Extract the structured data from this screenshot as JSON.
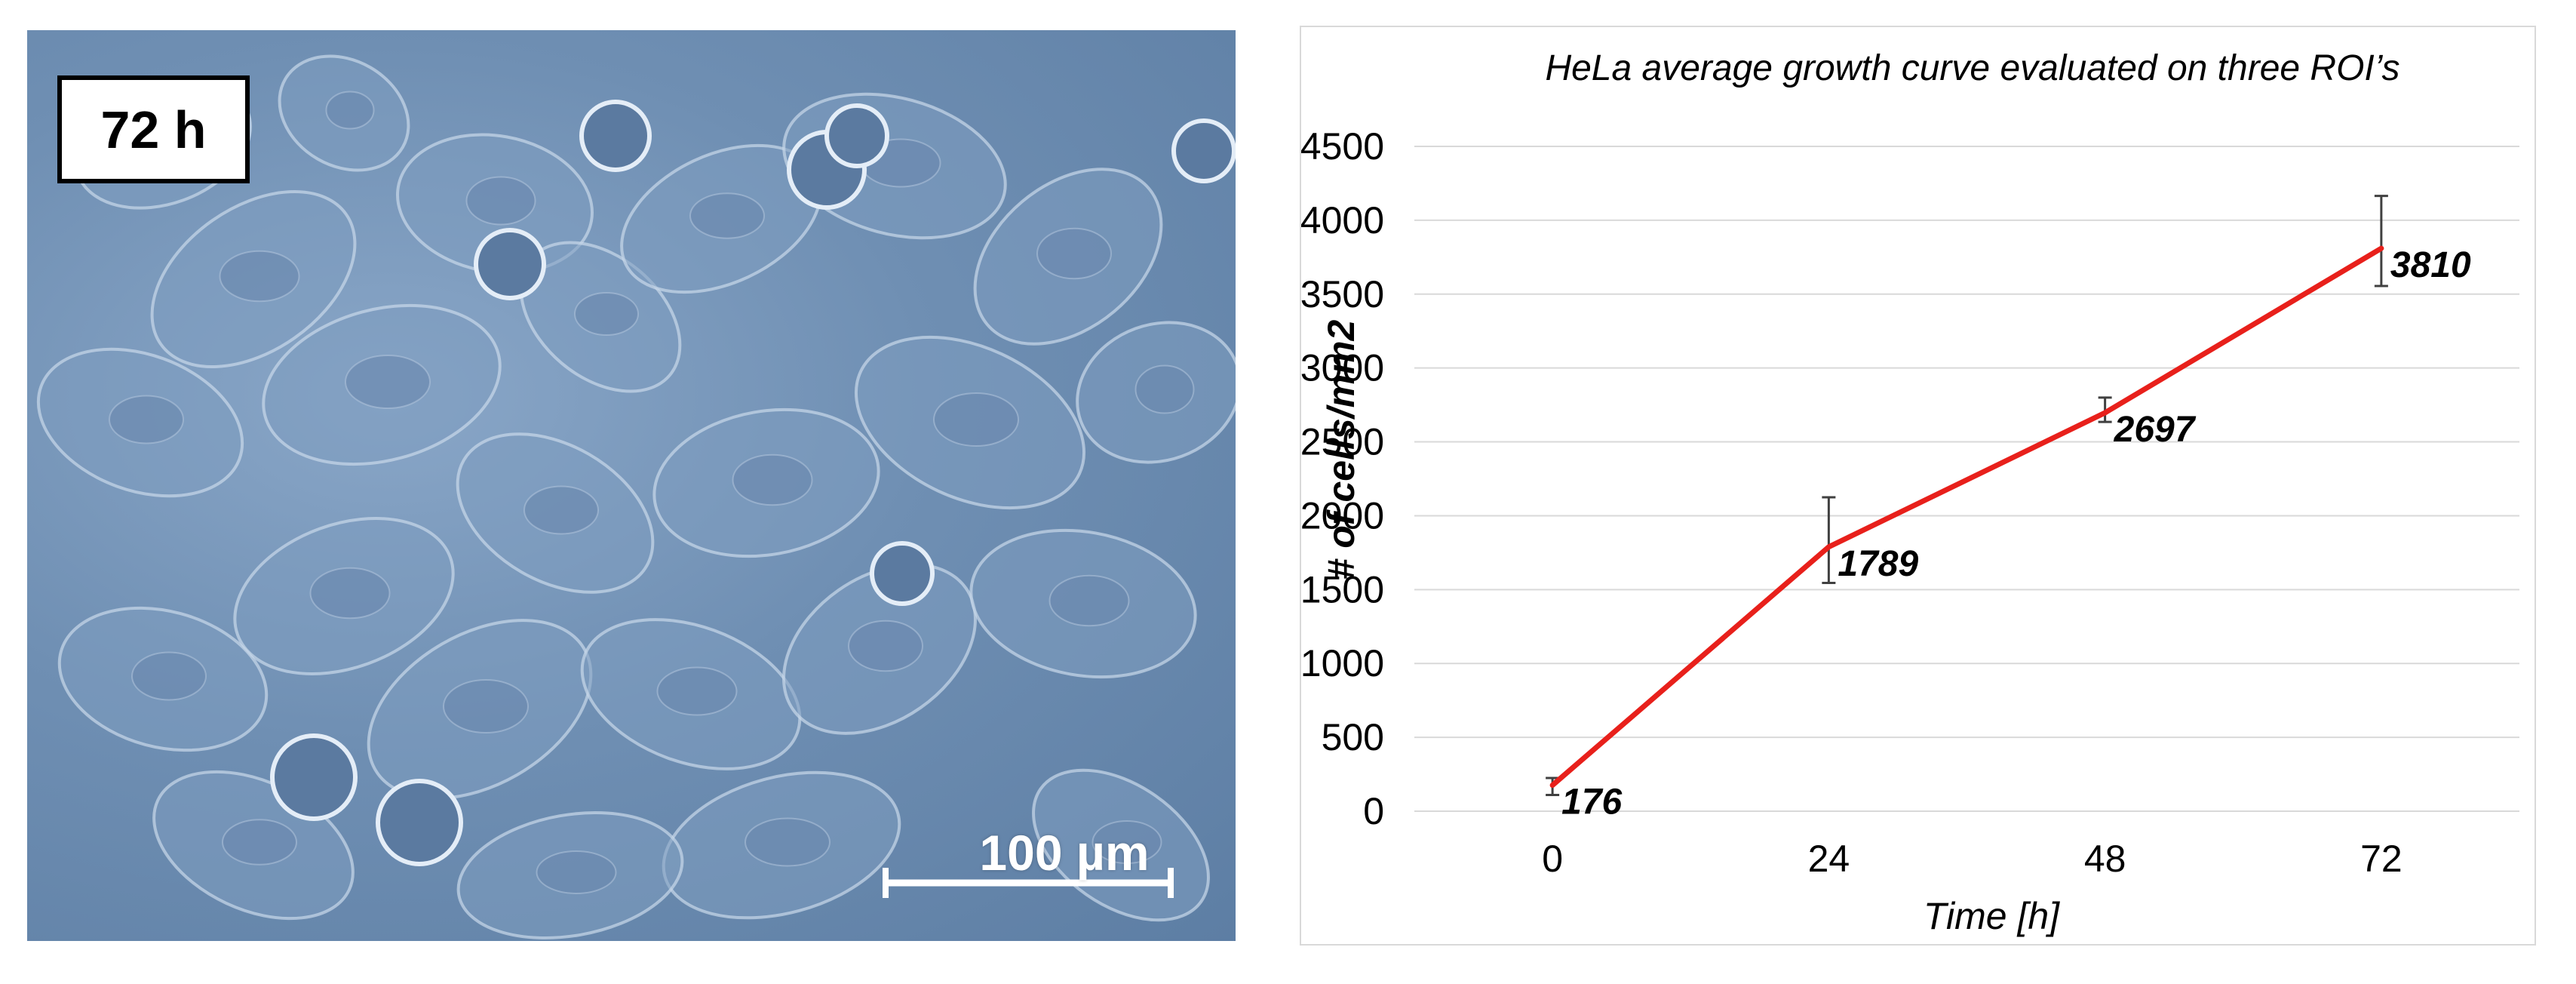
{
  "micrograph": {
    "time_label": "72 h",
    "scale_bar_label": "100 µm"
  },
  "chart_data": {
    "type": "line",
    "title": "HeLa average growth curve evaluated on three ROI’s",
    "xlabel": "Time [h]",
    "ylabel": "# of cells/mm2",
    "categories": [
      "0",
      "24",
      "48",
      "72"
    ],
    "series": [
      {
        "values": [
          176,
          1789,
          2697,
          3810
        ],
        "error_low": [
          110,
          1545,
          2635,
          3555
        ],
        "error_high": [
          225,
          2125,
          2800,
          4165
        ],
        "data_labels": [
          "176",
          "1789",
          "2697",
          "3810"
        ]
      }
    ],
    "ylim": [
      0,
      4500
    ],
    "yticks": [
      0,
      500,
      1000,
      1500,
      2000,
      2500,
      3000,
      3500,
      4000,
      4500
    ],
    "grid": true,
    "colors": {
      "line": "#e8201b",
      "grid": "#d9d9d9",
      "error_bar": "#404040"
    }
  }
}
